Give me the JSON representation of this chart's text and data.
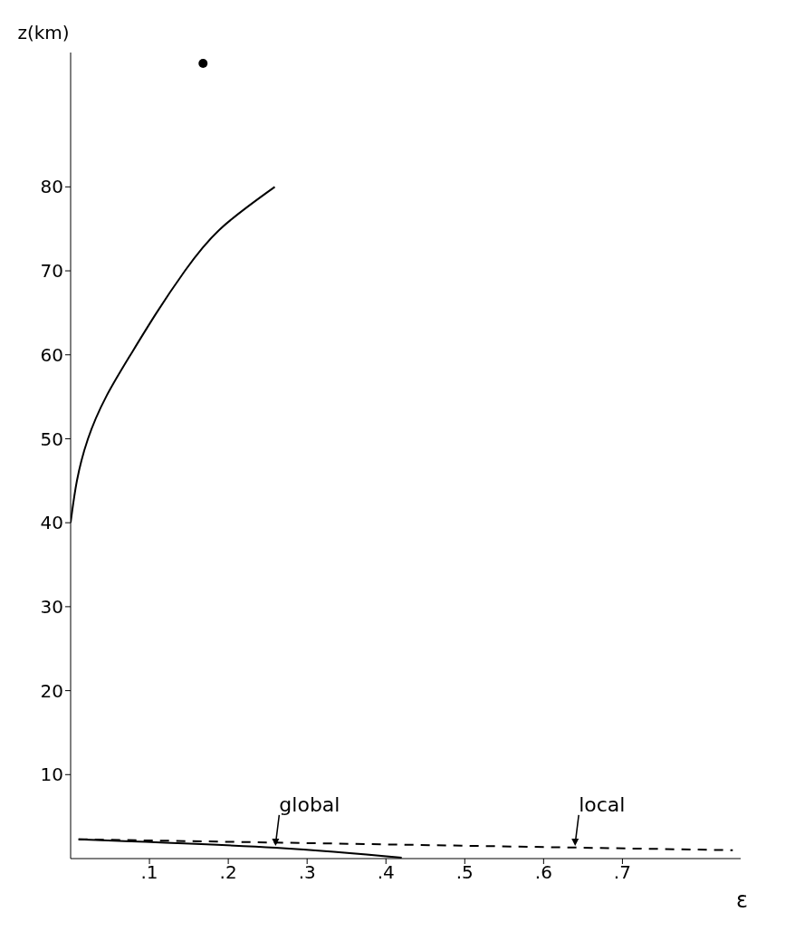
{
  "chart_data": {
    "type": "line",
    "xlabel": "ε",
    "ylabel": "z(km)",
    "xlim": [
      0,
      0.85
    ],
    "ylim": [
      0,
      96
    ],
    "xticks": [
      {
        "value": 0.1,
        "label": ".1"
      },
      {
        "value": 0.2,
        "label": ".2"
      },
      {
        "value": 0.3,
        "label": ".3"
      },
      {
        "value": 0.4,
        "label": ".4"
      },
      {
        "value": 0.5,
        "label": ".5"
      },
      {
        "value": 0.6,
        "label": ".6"
      },
      {
        "value": 0.7,
        "label": ".7"
      }
    ],
    "yticks": [
      10,
      20,
      30,
      40,
      50,
      60,
      70,
      80
    ],
    "grid": false,
    "marker": "none",
    "series": [
      {
        "color": "#000000",
        "line_style": "solid",
        "x": [
          0,
          0.008,
          0.022,
          0.045,
          0.076,
          0.109,
          0.145,
          0.19,
          0.259
        ],
        "values": [
          40,
          45,
          50,
          55,
          60,
          65,
          70,
          75,
          80
        ]
      },
      {
        "color": "#000000",
        "line_style": "solid",
        "x": [
          0.01,
          0.26,
          0.42
        ],
        "values": [
          2.3,
          1.3,
          0.1
        ]
      },
      {
        "color": "#000000",
        "line_style": "dashed",
        "x": [
          0.01,
          0.84
        ],
        "values": [
          2.3,
          1.0
        ]
      },
      {
        "type": "scatter",
        "color": "#000000",
        "marker": "circle",
        "x": [
          0.168
        ],
        "values": [
          94.7
        ]
      }
    ],
    "annotations": [
      {
        "text": "global",
        "x": 0.26,
        "y": 1.3
      },
      {
        "text": "local",
        "x": 0.64,
        "y": 1.3
      }
    ]
  }
}
